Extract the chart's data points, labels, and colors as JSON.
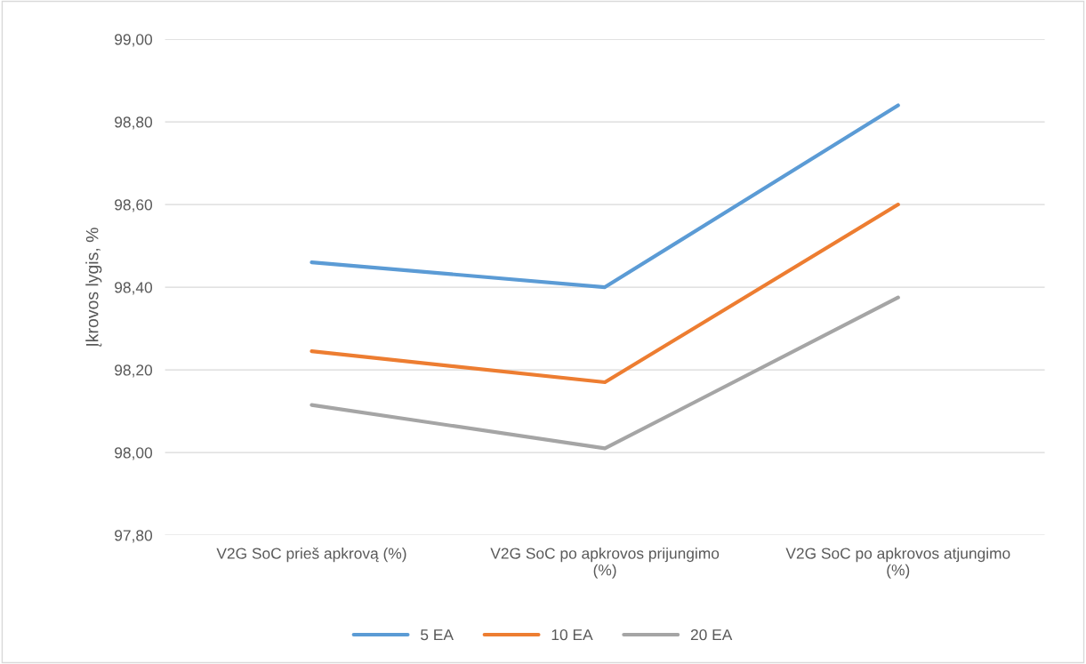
{
  "chart_data": {
    "type": "line",
    "ylabel": "Įkrovos lygis, %",
    "categories": [
      "V2G SoC prieš apkrovą (%)",
      "V2G SoC po apkrovos prijungimo\n(%)",
      "V2G SoC po apkrovos atjungimo\n(%)"
    ],
    "series": [
      {
        "name": "5 EA",
        "color": "#5b9bd5",
        "values": [
          98.46,
          98.4,
          98.84
        ]
      },
      {
        "name": "10 EA",
        "color": "#ed7d31",
        "values": [
          98.245,
          98.17,
          98.6
        ]
      },
      {
        "name": "20 EA",
        "color": "#a5a5a5",
        "values": [
          98.115,
          98.01,
          98.375
        ]
      }
    ],
    "ylim": [
      97.8,
      99.0
    ],
    "yticks": [
      {
        "value": 97.8,
        "label": "97,80"
      },
      {
        "value": 98.0,
        "label": "98,00"
      },
      {
        "value": 98.2,
        "label": "98,20"
      },
      {
        "value": 98.4,
        "label": "98,40"
      },
      {
        "value": 98.6,
        "label": "98,60"
      },
      {
        "value": 98.8,
        "label": "98,80"
      },
      {
        "value": 99.0,
        "label": "99,00"
      }
    ],
    "grid": "y",
    "legend": "bottom",
    "marker": "none",
    "line_style": "solid"
  }
}
